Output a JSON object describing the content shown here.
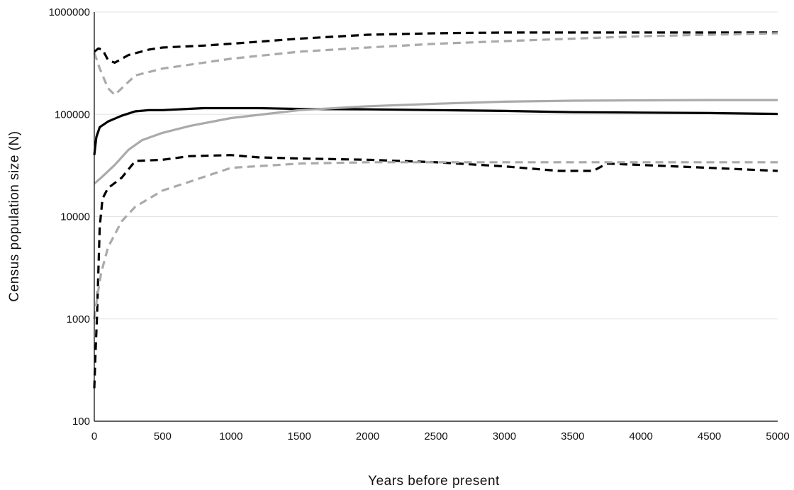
{
  "chart_data": {
    "type": "line",
    "title": "",
    "xlabel": "Years before present",
    "ylabel": "Census population size (N)",
    "xlim": [
      0,
      5000
    ],
    "ylim": [
      100,
      1000000
    ],
    "yscale": "log",
    "grid": {
      "x": false,
      "y": true
    },
    "legend": "none",
    "x_ticks": [
      "0",
      "500",
      "1000",
      "1500",
      "2000",
      "2500",
      "3000",
      "3500",
      "4000",
      "4500",
      "5000"
    ],
    "y_ticks": [
      "100",
      "1000",
      "10000",
      "100000",
      "1000000"
    ],
    "series": [
      {
        "color": "#000000",
        "dash": "solid",
        "points": [
          [
            0,
            40000
          ],
          [
            15,
            60000
          ],
          [
            40,
            75000
          ],
          [
            100,
            85000
          ],
          [
            200,
            97000
          ],
          [
            300,
            107000
          ],
          [
            400,
            110000
          ],
          [
            500,
            110000
          ],
          [
            800,
            115000
          ],
          [
            1200,
            115000
          ],
          [
            1500,
            113000
          ],
          [
            2000,
            112000
          ],
          [
            2500,
            110000
          ],
          [
            3000,
            108000
          ],
          [
            3500,
            105000
          ],
          [
            4000,
            104000
          ],
          [
            4500,
            103000
          ],
          [
            5000,
            101000
          ]
        ]
      },
      {
        "color": "#aaaaaa",
        "dash": "solid",
        "points": [
          [
            0,
            21000
          ],
          [
            50,
            24000
          ],
          [
            150,
            32000
          ],
          [
            250,
            45000
          ],
          [
            350,
            56000
          ],
          [
            500,
            66000
          ],
          [
            700,
            77000
          ],
          [
            1000,
            92000
          ],
          [
            1500,
            110000
          ],
          [
            2000,
            120000
          ],
          [
            2500,
            127000
          ],
          [
            3000,
            133000
          ],
          [
            3500,
            136000
          ],
          [
            4000,
            137000
          ],
          [
            4500,
            138000
          ],
          [
            5000,
            138000
          ]
        ]
      },
      {
        "color": "#000000",
        "dash": "dashed",
        "points": [
          [
            0,
            410000
          ],
          [
            30,
            440000
          ],
          [
            60,
            430000
          ],
          [
            100,
            340000
          ],
          [
            150,
            320000
          ],
          [
            250,
            380000
          ],
          [
            400,
            430000
          ],
          [
            500,
            450000
          ],
          [
            800,
            470000
          ],
          [
            1000,
            490000
          ],
          [
            1500,
            550000
          ],
          [
            2000,
            600000
          ],
          [
            2500,
            620000
          ],
          [
            3000,
            630000
          ],
          [
            3500,
            630000
          ],
          [
            4000,
            630000
          ],
          [
            4500,
            630000
          ],
          [
            5000,
            630000
          ]
        ]
      },
      {
        "color": "#aaaaaa",
        "dash": "dashed",
        "points": [
          [
            0,
            400000
          ],
          [
            40,
            280000
          ],
          [
            100,
            180000
          ],
          [
            150,
            155000
          ],
          [
            220,
            190000
          ],
          [
            300,
            240000
          ],
          [
            500,
            280000
          ],
          [
            800,
            320000
          ],
          [
            1000,
            350000
          ],
          [
            1500,
            410000
          ],
          [
            2000,
            450000
          ],
          [
            2500,
            490000
          ],
          [
            3000,
            520000
          ],
          [
            3500,
            550000
          ],
          [
            4000,
            580000
          ],
          [
            4500,
            600000
          ],
          [
            5000,
            620000
          ]
        ]
      },
      {
        "color": "#000000",
        "dash": "dashed",
        "points": [
          [
            0,
            210
          ],
          [
            10,
            500
          ],
          [
            20,
            1100
          ],
          [
            30,
            3000
          ],
          [
            40,
            8000
          ],
          [
            60,
            15000
          ],
          [
            100,
            19000
          ],
          [
            200,
            24000
          ],
          [
            300,
            35000
          ],
          [
            500,
            36000
          ],
          [
            700,
            39000
          ],
          [
            1000,
            40000
          ],
          [
            1200,
            38000
          ],
          [
            1500,
            37000
          ],
          [
            2000,
            36000
          ],
          [
            2500,
            34000
          ],
          [
            3000,
            31000
          ],
          [
            3400,
            28000
          ],
          [
            3650,
            28000
          ],
          [
            3750,
            33000
          ],
          [
            4000,
            32000
          ],
          [
            4500,
            30000
          ],
          [
            5000,
            28000
          ]
        ]
      },
      {
        "color": "#aaaaaa",
        "dash": "dashed",
        "points": [
          [
            0,
            1000
          ],
          [
            20,
            1600
          ],
          [
            50,
            2800
          ],
          [
            100,
            5000
          ],
          [
            200,
            9000
          ],
          [
            300,
            12500
          ],
          [
            500,
            18000
          ],
          [
            700,
            22000
          ],
          [
            1000,
            30000
          ],
          [
            1500,
            33000
          ],
          [
            2000,
            34000
          ],
          [
            2500,
            34000
          ],
          [
            3000,
            34000
          ],
          [
            3500,
            34000
          ],
          [
            4000,
            34000
          ],
          [
            4500,
            34000
          ],
          [
            5000,
            34000
          ]
        ]
      }
    ]
  }
}
